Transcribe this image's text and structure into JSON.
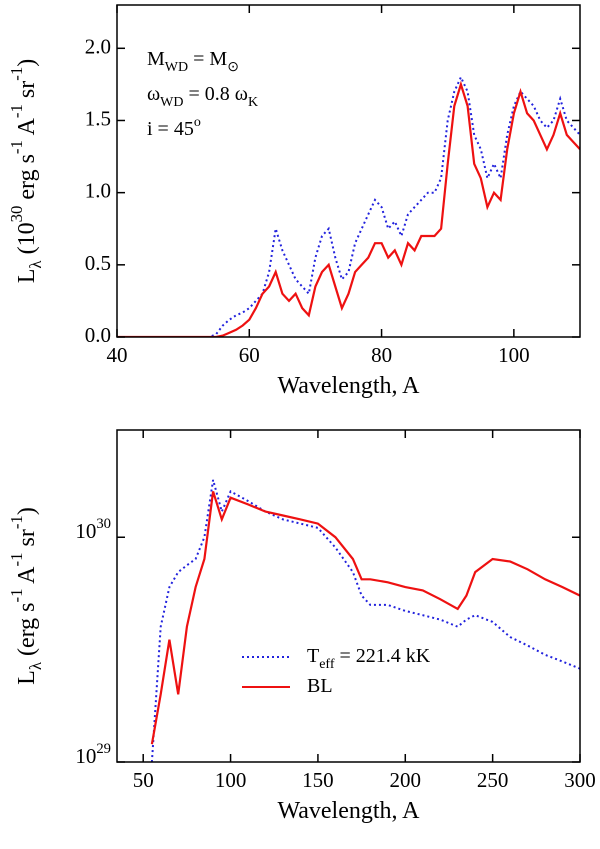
{
  "chart_data": [
    {
      "type": "line",
      "x": [
        40,
        41,
        42,
        43,
        44,
        45,
        46,
        47,
        48,
        49,
        50,
        51,
        52,
        53,
        54,
        55,
        56,
        57,
        58,
        59,
        60,
        61,
        62,
        63,
        64,
        65,
        66,
        67,
        68,
        69,
        70,
        71,
        72,
        73,
        74,
        75,
        76,
        77,
        78,
        79,
        80,
        81,
        82,
        83,
        84,
        85,
        86,
        87,
        88,
        89,
        90,
        91,
        92,
        93,
        94,
        95,
        96,
        97,
        98,
        99,
        100,
        101,
        102,
        103,
        104,
        105,
        106,
        107,
        108,
        109,
        110
      ],
      "series": [
        {
          "color": "#2222dd",
          "dash": true,
          "values": [
            0,
            0,
            0,
            0,
            0,
            0,
            0,
            0,
            0,
            0,
            0,
            0,
            0,
            0,
            0,
            0.02,
            0.08,
            0.12,
            0.15,
            0.17,
            0.2,
            0.25,
            0.3,
            0.45,
            0.75,
            0.6,
            0.5,
            0.4,
            0.35,
            0.3,
            0.55,
            0.7,
            0.75,
            0.55,
            0.4,
            0.45,
            0.65,
            0.75,
            0.85,
            0.95,
            0.9,
            0.75,
            0.8,
            0.7,
            0.85,
            0.9,
            0.95,
            1.0,
            1.0,
            1.1,
            1.5,
            1.7,
            1.8,
            1.7,
            1.4,
            1.3,
            1.1,
            1.2,
            1.1,
            1.4,
            1.6,
            1.7,
            1.65,
            1.6,
            1.5,
            1.45,
            1.5,
            1.65,
            1.5,
            1.45,
            1.4
          ]
        },
        {
          "color": "#ee1111",
          "dash": false,
          "values": [
            0,
            0,
            0,
            0,
            0,
            0,
            0,
            0,
            0,
            0,
            0,
            0,
            0,
            0,
            0,
            0,
            0.01,
            0.03,
            0.05,
            0.08,
            0.12,
            0.2,
            0.3,
            0.35,
            0.45,
            0.3,
            0.25,
            0.3,
            0.2,
            0.15,
            0.35,
            0.45,
            0.5,
            0.35,
            0.2,
            0.3,
            0.45,
            0.5,
            0.55,
            0.65,
            0.65,
            0.55,
            0.6,
            0.5,
            0.65,
            0.6,
            0.7,
            0.7,
            0.7,
            0.75,
            1.2,
            1.6,
            1.75,
            1.6,
            1.2,
            1.1,
            0.9,
            1.0,
            0.95,
            1.3,
            1.55,
            1.7,
            1.55,
            1.5,
            1.4,
            1.3,
            1.4,
            1.55,
            1.4,
            1.35,
            1.3
          ]
        }
      ],
      "xlim": [
        40,
        110
      ],
      "xticks": [
        40,
        60,
        80,
        100
      ],
      "ylim": [
        0,
        2.3
      ],
      "yticks": [
        {
          "value": 0,
          "label": "0.0"
        },
        0.5,
        {
          "value": 1,
          "label": "1.0"
        },
        1.5,
        {
          "value": 2,
          "label": "2.0"
        }
      ],
      "xlabel": "Wavelength,  A",
      "ylabel": "L_{λ} (10^{30} erg s^{-1} A^{-1} sr^{-1})",
      "annotations": [
        "M_{WD} = M_{⊙}",
        "ω_{WD} = 0.8 ω_{K}",
        "i = 45^{o}"
      ]
    },
    {
      "type": "line",
      "x": [
        55,
        60,
        65,
        70,
        75,
        80,
        85,
        90,
        95,
        100,
        110,
        120,
        130,
        140,
        150,
        160,
        170,
        175,
        180,
        190,
        200,
        210,
        220,
        230,
        235,
        240,
        250,
        260,
        270,
        280,
        290,
        300
      ],
      "series": [
        {
          "name": "T_{eff} = 221.4 kK",
          "color": "#2222dd",
          "dash": true,
          "values": [
            1e+29,
            4e+29,
            6e+29,
            7e+29,
            7.5e+29,
            8e+29,
            1e+30,
            1.8e+30,
            1.3e+30,
            1.6e+30,
            1.45e+30,
            1.3e+30,
            1.2e+30,
            1.15e+30,
            1.1e+30,
            9e+29,
            7e+29,
            5.5e+29,
            5e+29,
            5e+29,
            4.7e+29,
            4.5e+29,
            4.3e+29,
            4e+29,
            4.3e+29,
            4.5e+29,
            4.2e+29,
            3.6e+29,
            3.3e+29,
            3e+29,
            2.8e+29,
            2.6e+29
          ]
        },
        {
          "name": "BL",
          "color": "#ee1111",
          "dash": false,
          "values": [
            1.2e+29,
            2e+29,
            3.5e+29,
            2e+29,
            4e+29,
            6e+29,
            8e+29,
            1.6e+30,
            1.2e+30,
            1.5e+30,
            1.4e+30,
            1.3e+30,
            1.25e+30,
            1.2e+30,
            1.15e+30,
            1e+30,
            8e+29,
            6.5e+29,
            6.5e+29,
            6.3e+29,
            6e+29,
            5.8e+29,
            5.3e+29,
            4.8e+29,
            5.5e+29,
            7e+29,
            8e+29,
            7.8e+29,
            7.2e+29,
            6.5e+29,
            6e+29,
            5.5e+29
          ]
        }
      ],
      "xlim": [
        35,
        300
      ],
      "xticks": [
        50,
        100,
        150,
        200,
        250,
        300
      ],
      "ylim": [
        1e+29,
        3e+30
      ],
      "log_y": true,
      "yticks": [
        {
          "value": 1e+29,
          "label": "10^{29}"
        },
        {
          "value": 1e+30,
          "label": "10^{30}"
        }
      ],
      "xlabel": "Wavelength,  A",
      "ylabel": "L_{λ} (erg s^{-1} A^{-1} sr^{-1})"
    }
  ]
}
